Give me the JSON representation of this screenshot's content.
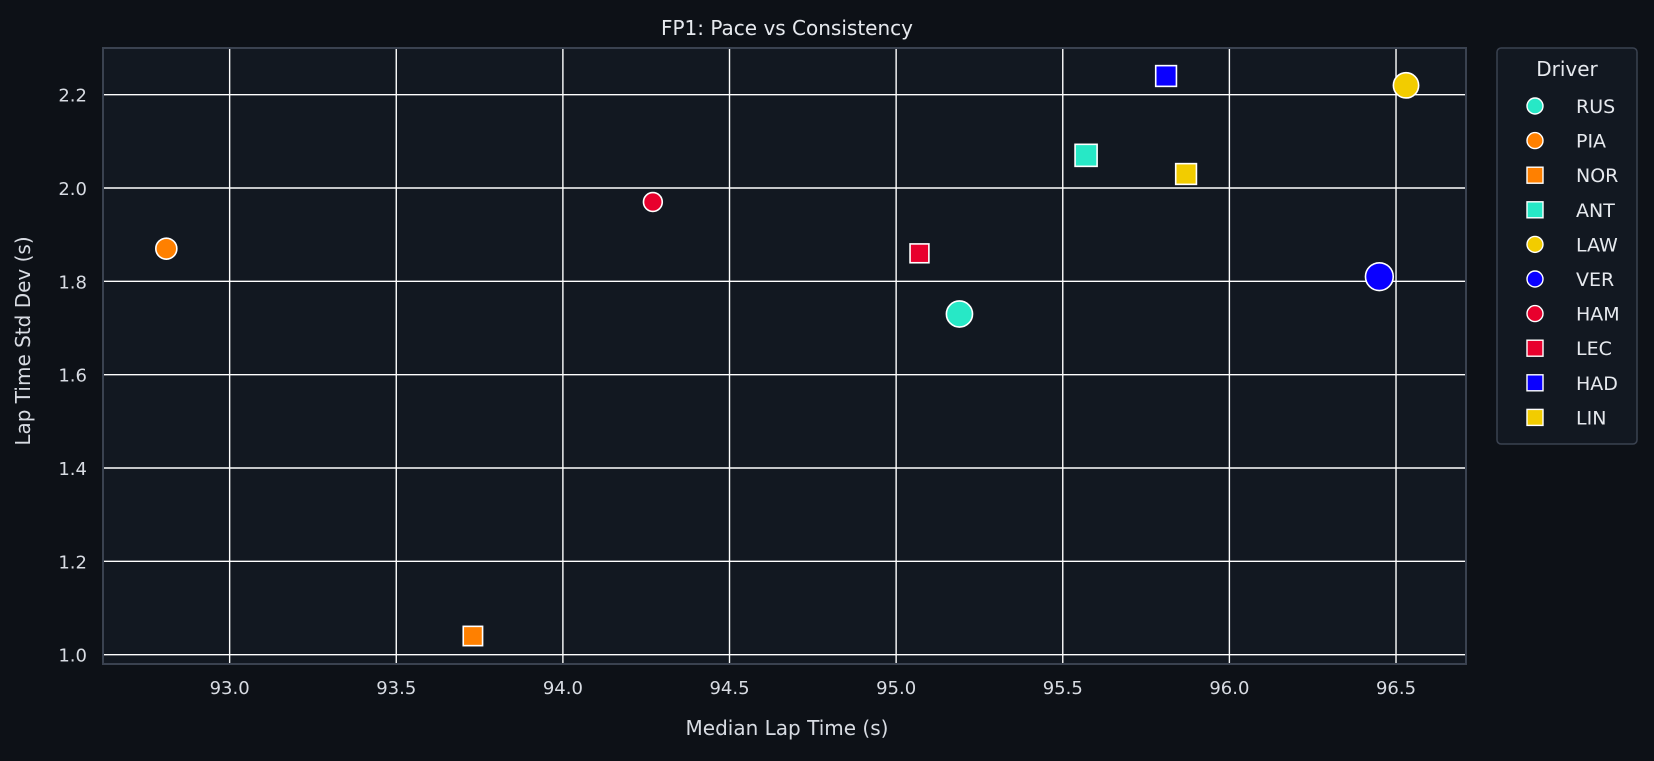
{
  "chart_data": {
    "type": "scatter",
    "title": "FP1: Pace vs Consistency",
    "xlabel": "Median Lap Time (s)",
    "ylabel": "Lap Time Std Dev (s)",
    "xlim": [
      92.62,
      96.71
    ],
    "ylim": [
      0.98,
      2.3
    ],
    "xticks": [
      93.0,
      93.5,
      94.0,
      94.5,
      95.0,
      95.5,
      96.0,
      96.5
    ],
    "xtick_labels": [
      "93.0",
      "93.5",
      "94.0",
      "94.5",
      "95.0",
      "95.5",
      "96.0",
      "96.5"
    ],
    "yticks": [
      1.0,
      1.2,
      1.4,
      1.6,
      1.8,
      2.0,
      2.2
    ],
    "ytick_labels": [
      "1.0",
      "1.2",
      "1.4",
      "1.6",
      "1.8",
      "2.0",
      "2.2"
    ],
    "grid": true,
    "legend": {
      "title": "Driver",
      "placement": "outside-top-right",
      "entries": [
        {
          "label": "RUS",
          "marker": "circle",
          "color": "#27e8c6"
        },
        {
          "label": "PIA",
          "marker": "circle",
          "color": "#ff8000"
        },
        {
          "label": "NOR",
          "marker": "square",
          "color": "#ff8000"
        },
        {
          "label": "ANT",
          "marker": "square",
          "color": "#27e8c6"
        },
        {
          "label": "LAW",
          "marker": "circle",
          "color": "#f2cc00"
        },
        {
          "label": "VER",
          "marker": "circle",
          "color": "#0a00ff"
        },
        {
          "label": "HAM",
          "marker": "circle",
          "color": "#e8002d"
        },
        {
          "label": "LEC",
          "marker": "square",
          "color": "#e8002d"
        },
        {
          "label": "HAD",
          "marker": "square",
          "color": "#0a00ff"
        },
        {
          "label": "LIN",
          "marker": "square",
          "color": "#f2cc00"
        }
      ]
    },
    "points": [
      {
        "driver": "RUS",
        "x": 95.19,
        "y": 1.73,
        "marker": "circle",
        "color": "#27e8c6",
        "size": 1.55
      },
      {
        "driver": "PIA",
        "x": 92.81,
        "y": 1.87,
        "marker": "circle",
        "color": "#ff8000",
        "size": 1.0
      },
      {
        "driver": "NOR",
        "x": 93.73,
        "y": 1.04,
        "marker": "square",
        "color": "#ff8000",
        "size": 1.0
      },
      {
        "driver": "ANT",
        "x": 95.57,
        "y": 2.07,
        "marker": "square",
        "color": "#27e8c6",
        "size": 1.3
      },
      {
        "driver": "LAW",
        "x": 96.53,
        "y": 2.22,
        "marker": "circle",
        "color": "#f2cc00",
        "size": 1.45
      },
      {
        "driver": "VER",
        "x": 96.45,
        "y": 1.81,
        "marker": "circle",
        "color": "#0a00ff",
        "size": 1.75
      },
      {
        "driver": "HAM",
        "x": 94.27,
        "y": 1.97,
        "marker": "circle",
        "color": "#e8002d",
        "size": 0.8
      },
      {
        "driver": "LEC",
        "x": 95.07,
        "y": 1.86,
        "marker": "square",
        "color": "#e8002d",
        "size": 0.95
      },
      {
        "driver": "HAD",
        "x": 95.81,
        "y": 2.24,
        "marker": "square",
        "color": "#0a00ff",
        "size": 1.15
      },
      {
        "driver": "LIN",
        "x": 95.87,
        "y": 2.03,
        "marker": "square",
        "color": "#f2cc00",
        "size": 1.15
      }
    ]
  }
}
